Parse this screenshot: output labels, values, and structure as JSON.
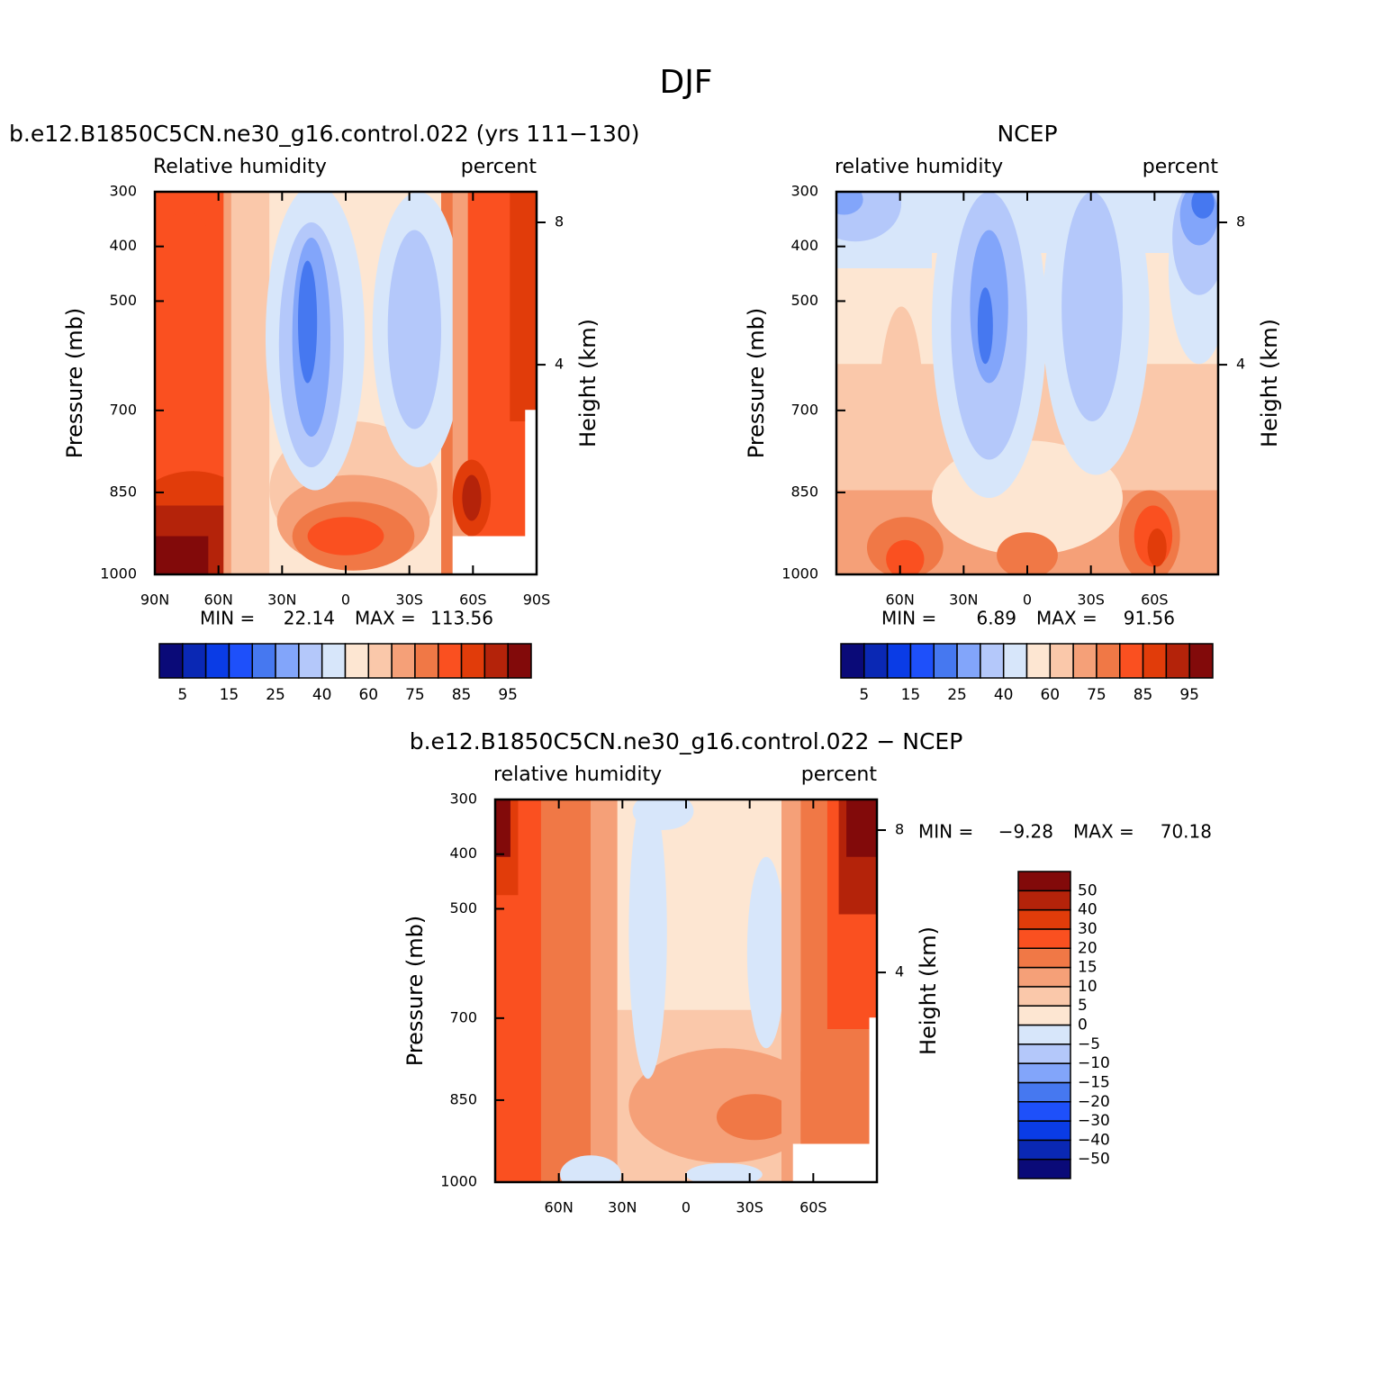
{
  "title": "DJF",
  "chart_data": [
    {
      "type": "contour",
      "title": "b.e12.B1850C5CN.ne30_g16.control.022 (yrs 111−130)",
      "left_label": "Relative humidity",
      "right_label": "percent",
      "ylabel": "Pressure (mb)",
      "y2label": "Height (km)",
      "xlim": [
        90,
        -90
      ],
      "ylim": [
        1000,
        300
      ],
      "xticks": [
        {
          "value": 90,
          "label": "90N"
        },
        {
          "value": 60,
          "label": "60N"
        },
        {
          "value": 30,
          "label": "30N"
        },
        0,
        {
          "value": -30,
          "label": "30S"
        },
        {
          "value": -60,
          "label": "60S"
        },
        {
          "value": -90,
          "label": "90S"
        }
      ],
      "yticks": [
        300,
        400,
        500,
        700,
        850,
        1000
      ],
      "y2ticks": [
        8,
        4
      ],
      "min_text": "MIN =",
      "min": 22.14,
      "max_text": "MAX =",
      "max": 113.56,
      "colorbar": {
        "orientation": "horizontal",
        "colors": [
          "#0a0a78",
          "#0a28b4",
          "#0a3ce6",
          "#1e50fa",
          "#4678f0",
          "#82a5fa",
          "#b4c8fa",
          "#d7e6fa",
          "#fde6d2",
          "#fac8aa",
          "#f5a078",
          "#f07846",
          "#fa5020",
          "#e13c0a",
          "#b4230a",
          "#820a0a"
        ],
        "labels": [
          5,
          15,
          25,
          40,
          60,
          75,
          85,
          95
        ]
      }
    },
    {
      "type": "contour",
      "title": "NCEP",
      "left_label": "relative humidity",
      "right_label": "percent",
      "ylabel": "Pressure (mb)",
      "y2label": "Height (km)",
      "xlim": [
        90,
        -90
      ],
      "ylim": [
        1000,
        300
      ],
      "xticks": [
        {
          "value": 60,
          "label": "60N"
        },
        {
          "value": 30,
          "label": "30N"
        },
        0,
        {
          "value": -30,
          "label": "30S"
        },
        {
          "value": -60,
          "label": "60S"
        }
      ],
      "yticks": [
        300,
        400,
        500,
        700,
        850,
        1000
      ],
      "y2ticks": [
        8,
        4
      ],
      "min_text": "MIN =",
      "min": 6.89,
      "max_text": "MAX =",
      "max": 91.56,
      "colorbar": {
        "orientation": "horizontal",
        "colors": [
          "#0a0a78",
          "#0a28b4",
          "#0a3ce6",
          "#1e50fa",
          "#4678f0",
          "#82a5fa",
          "#b4c8fa",
          "#d7e6fa",
          "#fde6d2",
          "#fac8aa",
          "#f5a078",
          "#f07846",
          "#fa5020",
          "#e13c0a",
          "#b4230a",
          "#820a0a"
        ],
        "labels": [
          5,
          15,
          25,
          40,
          60,
          75,
          85,
          95
        ]
      }
    },
    {
      "type": "contour",
      "title": "b.e12.B1850C5CN.ne30_g16.control.022 − NCEP",
      "left_label": "relative humidity",
      "right_label": "percent",
      "ylabel": "Pressure (mb)",
      "y2label": "Height (km)",
      "xlim": [
        90,
        -90
      ],
      "ylim": [
        1000,
        300
      ],
      "xticks": [
        {
          "value": 60,
          "label": "60N"
        },
        {
          "value": 30,
          "label": "30N"
        },
        0,
        {
          "value": -30,
          "label": "30S"
        },
        {
          "value": -60,
          "label": "60S"
        }
      ],
      "yticks": [
        300,
        400,
        500,
        700,
        850,
        1000
      ],
      "y2ticks": [
        8,
        4
      ],
      "min_text": "MIN =",
      "min": {
        "value": -9.28,
        "label": "−9.28"
      },
      "max_text": "MAX =",
      "max": 70.18,
      "colorbar": {
        "orientation": "vertical",
        "colors": [
          "#0a0a78",
          "#0a28b4",
          "#0a3ce6",
          "#1e50fa",
          "#4678f0",
          "#82a5fa",
          "#b4c8fa",
          "#d7e6fa",
          "#fde6d2",
          "#fac8aa",
          "#f5a078",
          "#f07846",
          "#fa5020",
          "#e13c0a",
          "#b4230a",
          "#820a0a"
        ],
        "labels": [
          {
            "value": -50,
            "label": "−50"
          },
          {
            "value": -40,
            "label": "−40"
          },
          {
            "value": -30,
            "label": "−30"
          },
          {
            "value": -20,
            "label": "−20"
          },
          {
            "value": -15,
            "label": "−15"
          },
          {
            "value": -10,
            "label": "−10"
          },
          {
            "value": -5,
            "label": "−5"
          },
          0,
          5,
          10,
          15,
          20,
          30,
          40,
          50
        ]
      }
    }
  ]
}
